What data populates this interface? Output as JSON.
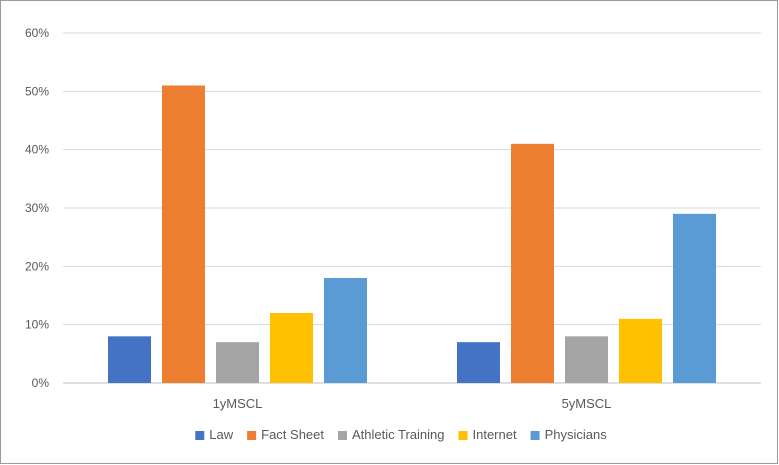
{
  "chart_data": {
    "type": "bar",
    "title": "",
    "xlabel": "",
    "ylabel": "",
    "categories": [
      "1yMSCL",
      "5yMSCL"
    ],
    "series": [
      {
        "name": "Law",
        "color": "#4472c4",
        "values": [
          8,
          7
        ]
      },
      {
        "name": "Fact Sheet",
        "color": "#ed7d31",
        "values": [
          51,
          41
        ]
      },
      {
        "name": "Athletic Training",
        "color": "#a5a5a5",
        "values": [
          7,
          8
        ]
      },
      {
        "name": "Internet",
        "color": "#ffc000",
        "values": [
          12,
          11
        ]
      },
      {
        "name": "Physicians",
        "color": "#5b9bd5",
        "values": [
          18,
          29
        ]
      }
    ],
    "ylim": [
      0,
      60
    ],
    "yticks": [
      0,
      10,
      20,
      30,
      40,
      50,
      60
    ],
    "ytick_labels": [
      "0%",
      "10%",
      "20%",
      "30%",
      "40%",
      "50%",
      "60%"
    ],
    "grid": true,
    "legend_position": "bottom"
  }
}
